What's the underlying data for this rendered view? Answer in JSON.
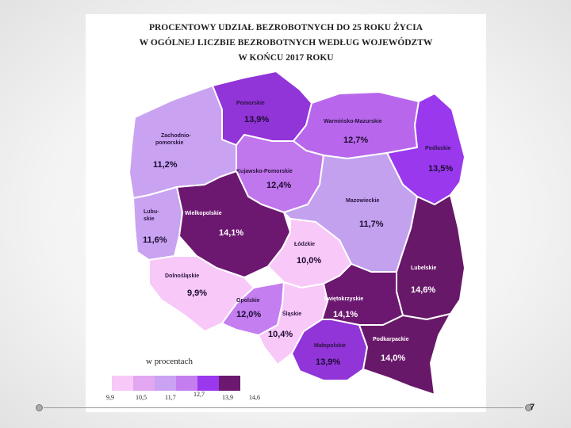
{
  "title_lines": [
    "PROCENTOWY UDZIAŁ BEZROBOTNYCH DO 25 ROKU ŻYCIA",
    "W OGÓLNEJ LICZBIE BEZROBOTNYCH WEDŁUG WOJEWÓDZTW",
    "W KOŃCU 2017 ROKU"
  ],
  "regions": [
    {
      "id": "zachodniopomorskie",
      "name_lines": [
        "Zachodnio-",
        "pomorskie"
      ],
      "value": "11,2%",
      "color": "#c9a3f2"
    },
    {
      "id": "pomorskie",
      "name_lines": [
        "Pomorskie"
      ],
      "value": "13,9%",
      "color": "#9134d8"
    },
    {
      "id": "warminsko-mazurskie",
      "name_lines": [
        "Warmińsko-Mazurskie"
      ],
      "value": "12,7%",
      "color": "#b867ec"
    },
    {
      "id": "podlaskie",
      "name_lines": [
        "Podlaskie"
      ],
      "value": "13,5%",
      "color": "#9a38ee"
    },
    {
      "id": "kujawsko-pomorskie",
      "name_lines": [
        "Kujawsko-Pomorskie"
      ],
      "value": "12,4%",
      "color": "#c076ec"
    },
    {
      "id": "lubuskie",
      "name_lines": [
        "Lubu-",
        "skie"
      ],
      "value": "11,6%",
      "color": "#c9a3f2"
    },
    {
      "id": "wielkopolskie",
      "name_lines": [
        "Wielkopolskie"
      ],
      "value": "14,1%",
      "color": "#6c1870"
    },
    {
      "id": "mazowieckie",
      "name_lines": [
        "Mazowieckie"
      ],
      "value": "11,7%",
      "color": "#c3a1ef"
    },
    {
      "id": "lodzkie",
      "name_lines": [
        "Łódzkie"
      ],
      "value": "10,0%",
      "color": "#f8c8f8"
    },
    {
      "id": "lubelskie",
      "name_lines": [
        "Lubelskie"
      ],
      "value": "14,6%",
      "color": "#681868"
    },
    {
      "id": "dolnoslaskie",
      "name_lines": [
        "Dolnośląskie"
      ],
      "value": "9,9%",
      "color": "#f8c8f8"
    },
    {
      "id": "opolskie",
      "name_lines": [
        "Opolskie"
      ],
      "value": "12,0%",
      "color": "#c47ef0"
    },
    {
      "id": "slaskie",
      "name_lines": [
        "Śląskie"
      ],
      "value": "10,4%",
      "color": "#f8c8f8"
    },
    {
      "id": "swietokrzyskie",
      "name_lines": [
        "Świętokrzyskie"
      ],
      "value": "14,1%",
      "color": "#6c1870"
    },
    {
      "id": "malopolskie",
      "name_lines": [
        "Małopolskie"
      ],
      "value": "13,9%",
      "color": "#9134d8"
    },
    {
      "id": "podkarpackie",
      "name_lines": [
        "Podkarpackie"
      ],
      "value": "14,0%",
      "color": "#681868"
    }
  ],
  "legend": {
    "title": "w procentach",
    "colors": [
      "#f8c8f8",
      "#e3a6f1",
      "#c9a3f2",
      "#c47ef0",
      "#9a38ee",
      "#6c1870"
    ],
    "ticks": [
      "9,9",
      "10,5",
      "11,7",
      "12,7",
      "13,9",
      "14,6"
    ]
  },
  "page_number": "7"
}
